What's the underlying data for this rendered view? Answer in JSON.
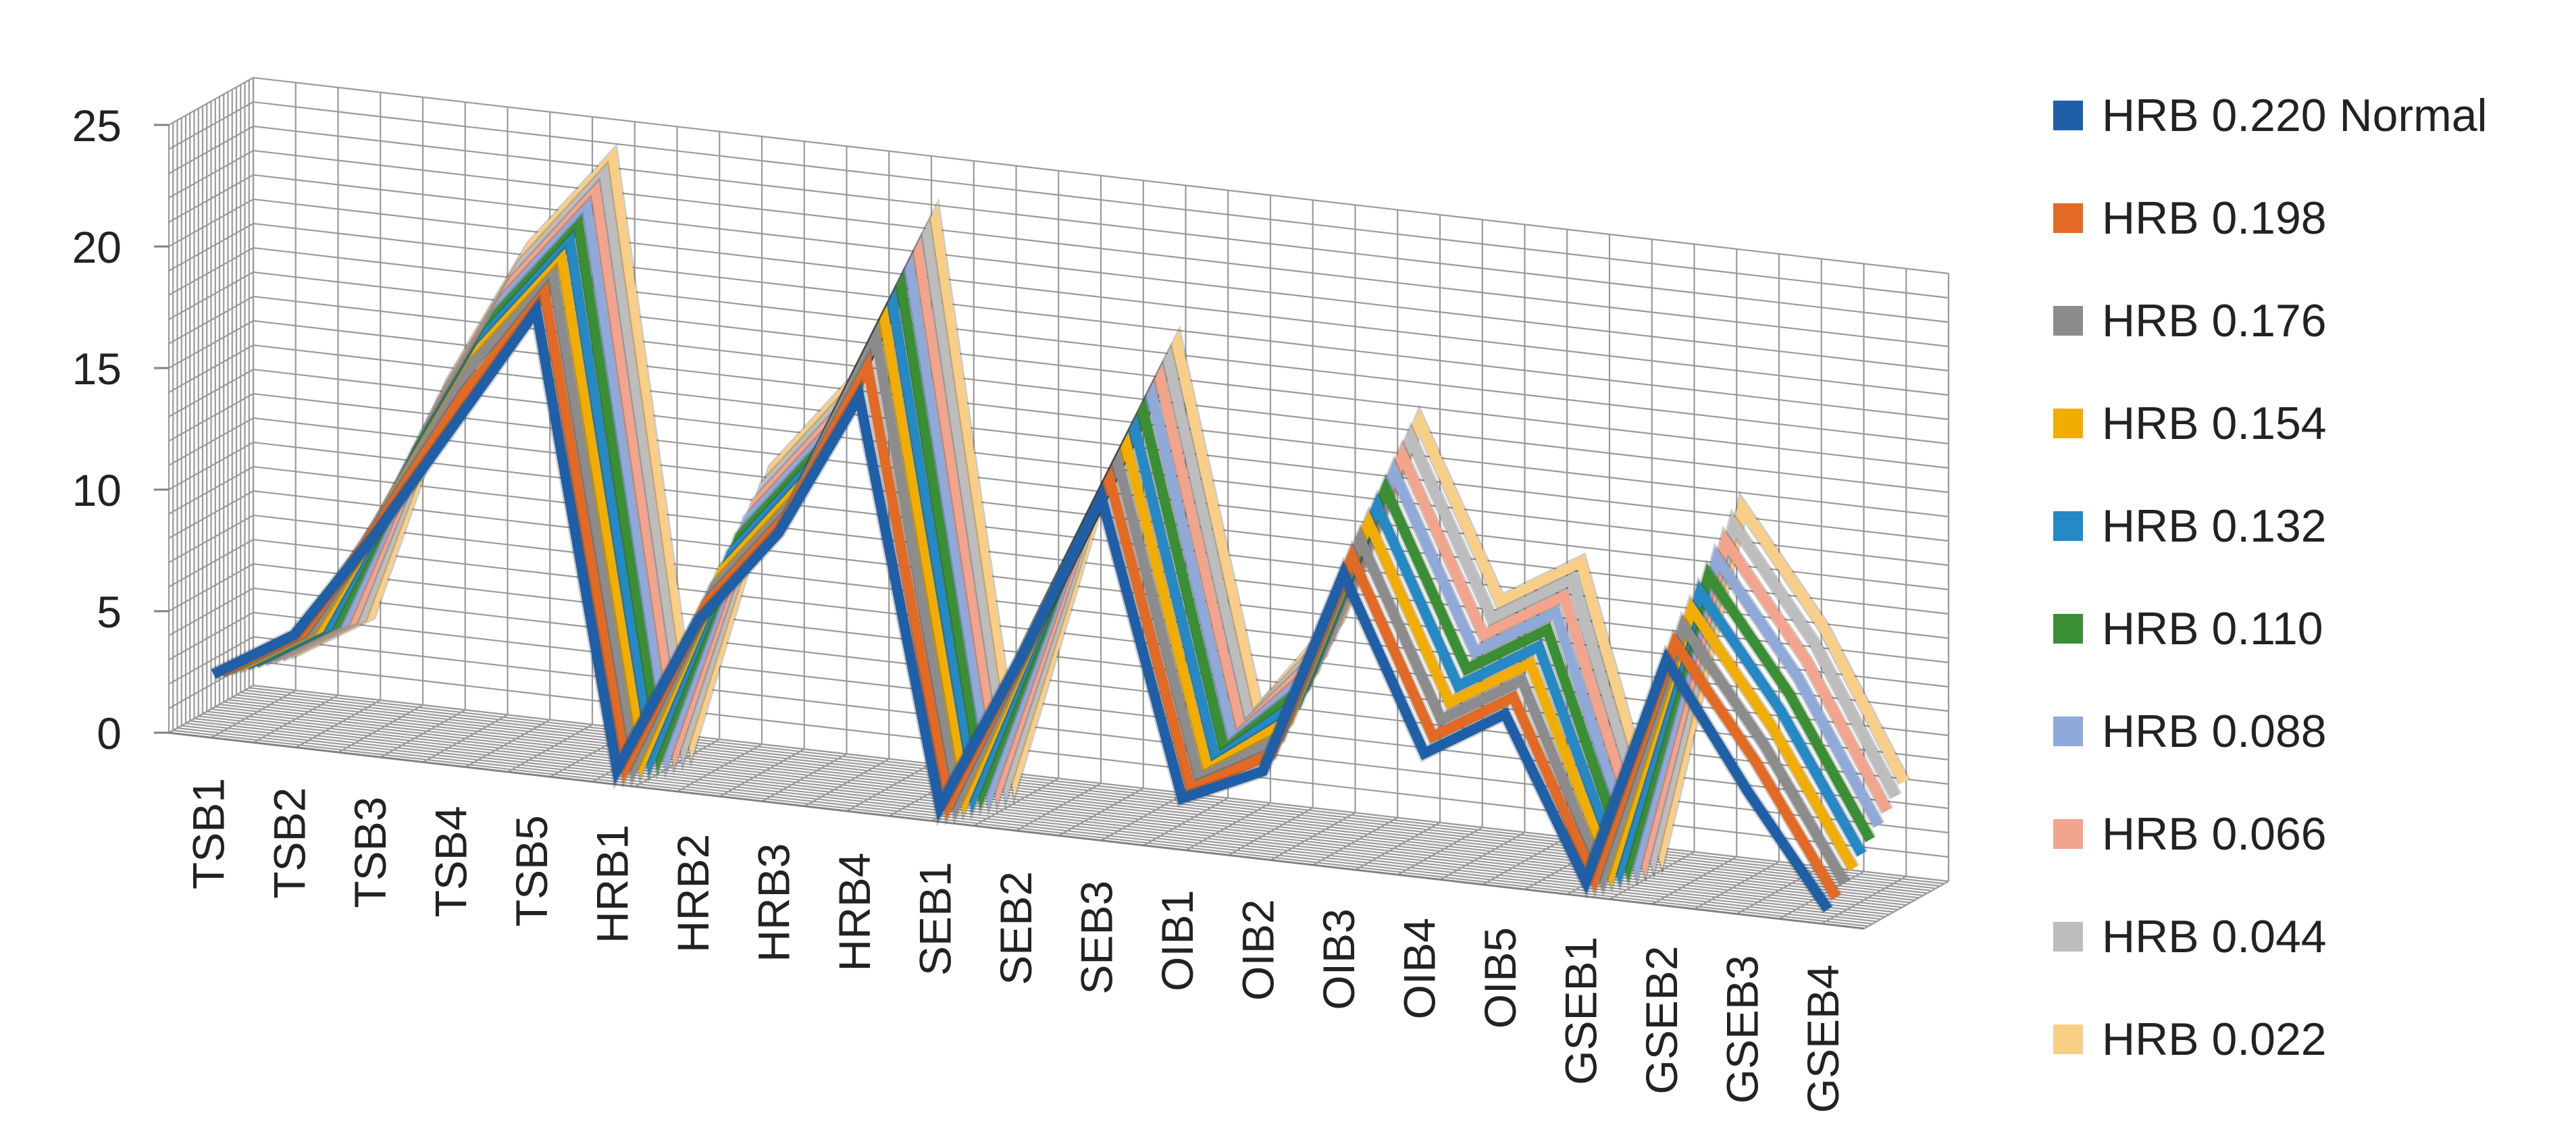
{
  "chart_data": {
    "type": "line",
    "style": "3d-line",
    "title": "",
    "xlabel": "",
    "ylabel": "",
    "ylim": [
      0,
      25
    ],
    "yticks": [
      "0",
      "5",
      "10",
      "15",
      "20",
      "25"
    ],
    "categories": [
      "TSB1",
      "TSB2",
      "TSB3",
      "TSB4",
      "TSB5",
      "HRB1",
      "HRB2",
      "HRB3",
      "HRB4",
      "SEB1",
      "SEB2",
      "SEB3",
      "OIB1",
      "OIB2",
      "OIB3",
      "OIB4",
      "OIB5",
      "GSEB1",
      "GSEB2",
      "GSEB3",
      "GSEB4"
    ],
    "grid": true,
    "legend_position": "right",
    "series": [
      {
        "name": "HRB 0.220 Normal",
        "color": "#1F5FA8",
        "values": [
          2.5,
          4.5,
          9,
          14,
          19,
          0.5,
          7,
          11,
          17,
          0.5,
          7,
          14,
          2,
          3.5,
          12,
          5,
          7,
          0.5,
          10,
          5,
          0.5
        ]
      },
      {
        "name": "HRB 0.198",
        "color": "#E36A24",
        "values": [
          2.4,
          4.4,
          9.5,
          15,
          19.5,
          0.4,
          7.5,
          11.5,
          18,
          0.4,
          7.5,
          14.5,
          2.2,
          4,
          12.5,
          5.5,
          7.5,
          0.4,
          10.5,
          6,
          0.8
        ]
      },
      {
        "name": "HRB 0.176",
        "color": "#8C8C8C",
        "values": [
          2.3,
          4.3,
          10,
          16,
          20,
          0.3,
          8,
          12,
          19,
          0.3,
          8,
          15,
          2.4,
          4.5,
          13,
          6,
          8,
          0.3,
          11,
          6.5,
          1.2
        ]
      },
      {
        "name": "HRB 0.154",
        "color": "#F2AE00",
        "values": [
          2.2,
          4.2,
          10.5,
          16.5,
          20.5,
          0.3,
          8.5,
          12.5,
          19.5,
          0.3,
          8.5,
          15.5,
          2.6,
          5,
          13.5,
          6.5,
          8.5,
          0.3,
          11.5,
          7,
          1.6
        ]
      },
      {
        "name": "HRB 0.132",
        "color": "#2489C4",
        "values": [
          2.1,
          4.1,
          11,
          17,
          21,
          0.2,
          9,
          13,
          20,
          0.2,
          9,
          16,
          2.8,
          5.5,
          14,
          7,
          9,
          0.2,
          12,
          7.5,
          2
        ]
      },
      {
        "name": "HRB 0.110",
        "color": "#3A8F34",
        "values": [
          2,
          4,
          11.5,
          17.5,
          21.5,
          0.2,
          9.5,
          13.5,
          20.5,
          0.2,
          9.5,
          16.5,
          3,
          6,
          14.5,
          7.5,
          9.5,
          0.2,
          12.5,
          8,
          2.4
        ]
      },
      {
        "name": "HRB 0.088",
        "color": "#8FA9DA",
        "values": [
          1.9,
          3.9,
          12,
          18,
          22,
          0.1,
          10,
          14,
          21,
          0.1,
          10,
          17,
          3.2,
          6.5,
          15,
          8,
          10,
          0.1,
          13,
          8.5,
          2.8
        ]
      },
      {
        "name": "HRB 0.066",
        "color": "#F3A48C",
        "values": [
          1.8,
          3.8,
          12.5,
          18.5,
          22.5,
          0.1,
          10.5,
          14.5,
          21.5,
          0.1,
          10.5,
          17.5,
          3.4,
          7,
          15.5,
          8.5,
          10.5,
          0.1,
          13.5,
          9,
          3.2
        ]
      },
      {
        "name": "HRB 0.044",
        "color": "#BDBDBD",
        "values": [
          1.7,
          3.7,
          13,
          19,
          23,
          0.1,
          11,
          15,
          22,
          0.1,
          11,
          18,
          3.6,
          7.5,
          16,
          9,
          11,
          0.1,
          14,
          9.5,
          3.6
        ]
      },
      {
        "name": "HRB 0.022",
        "color": "#F9CE87",
        "values": [
          1.6,
          3.6,
          13.5,
          19.5,
          23.5,
          0.1,
          11.5,
          15.5,
          22.5,
          0.1,
          11.5,
          18.5,
          3.8,
          8,
          16.5,
          9.5,
          11.5,
          0.1,
          14.5,
          10,
          4
        ]
      }
    ]
  }
}
